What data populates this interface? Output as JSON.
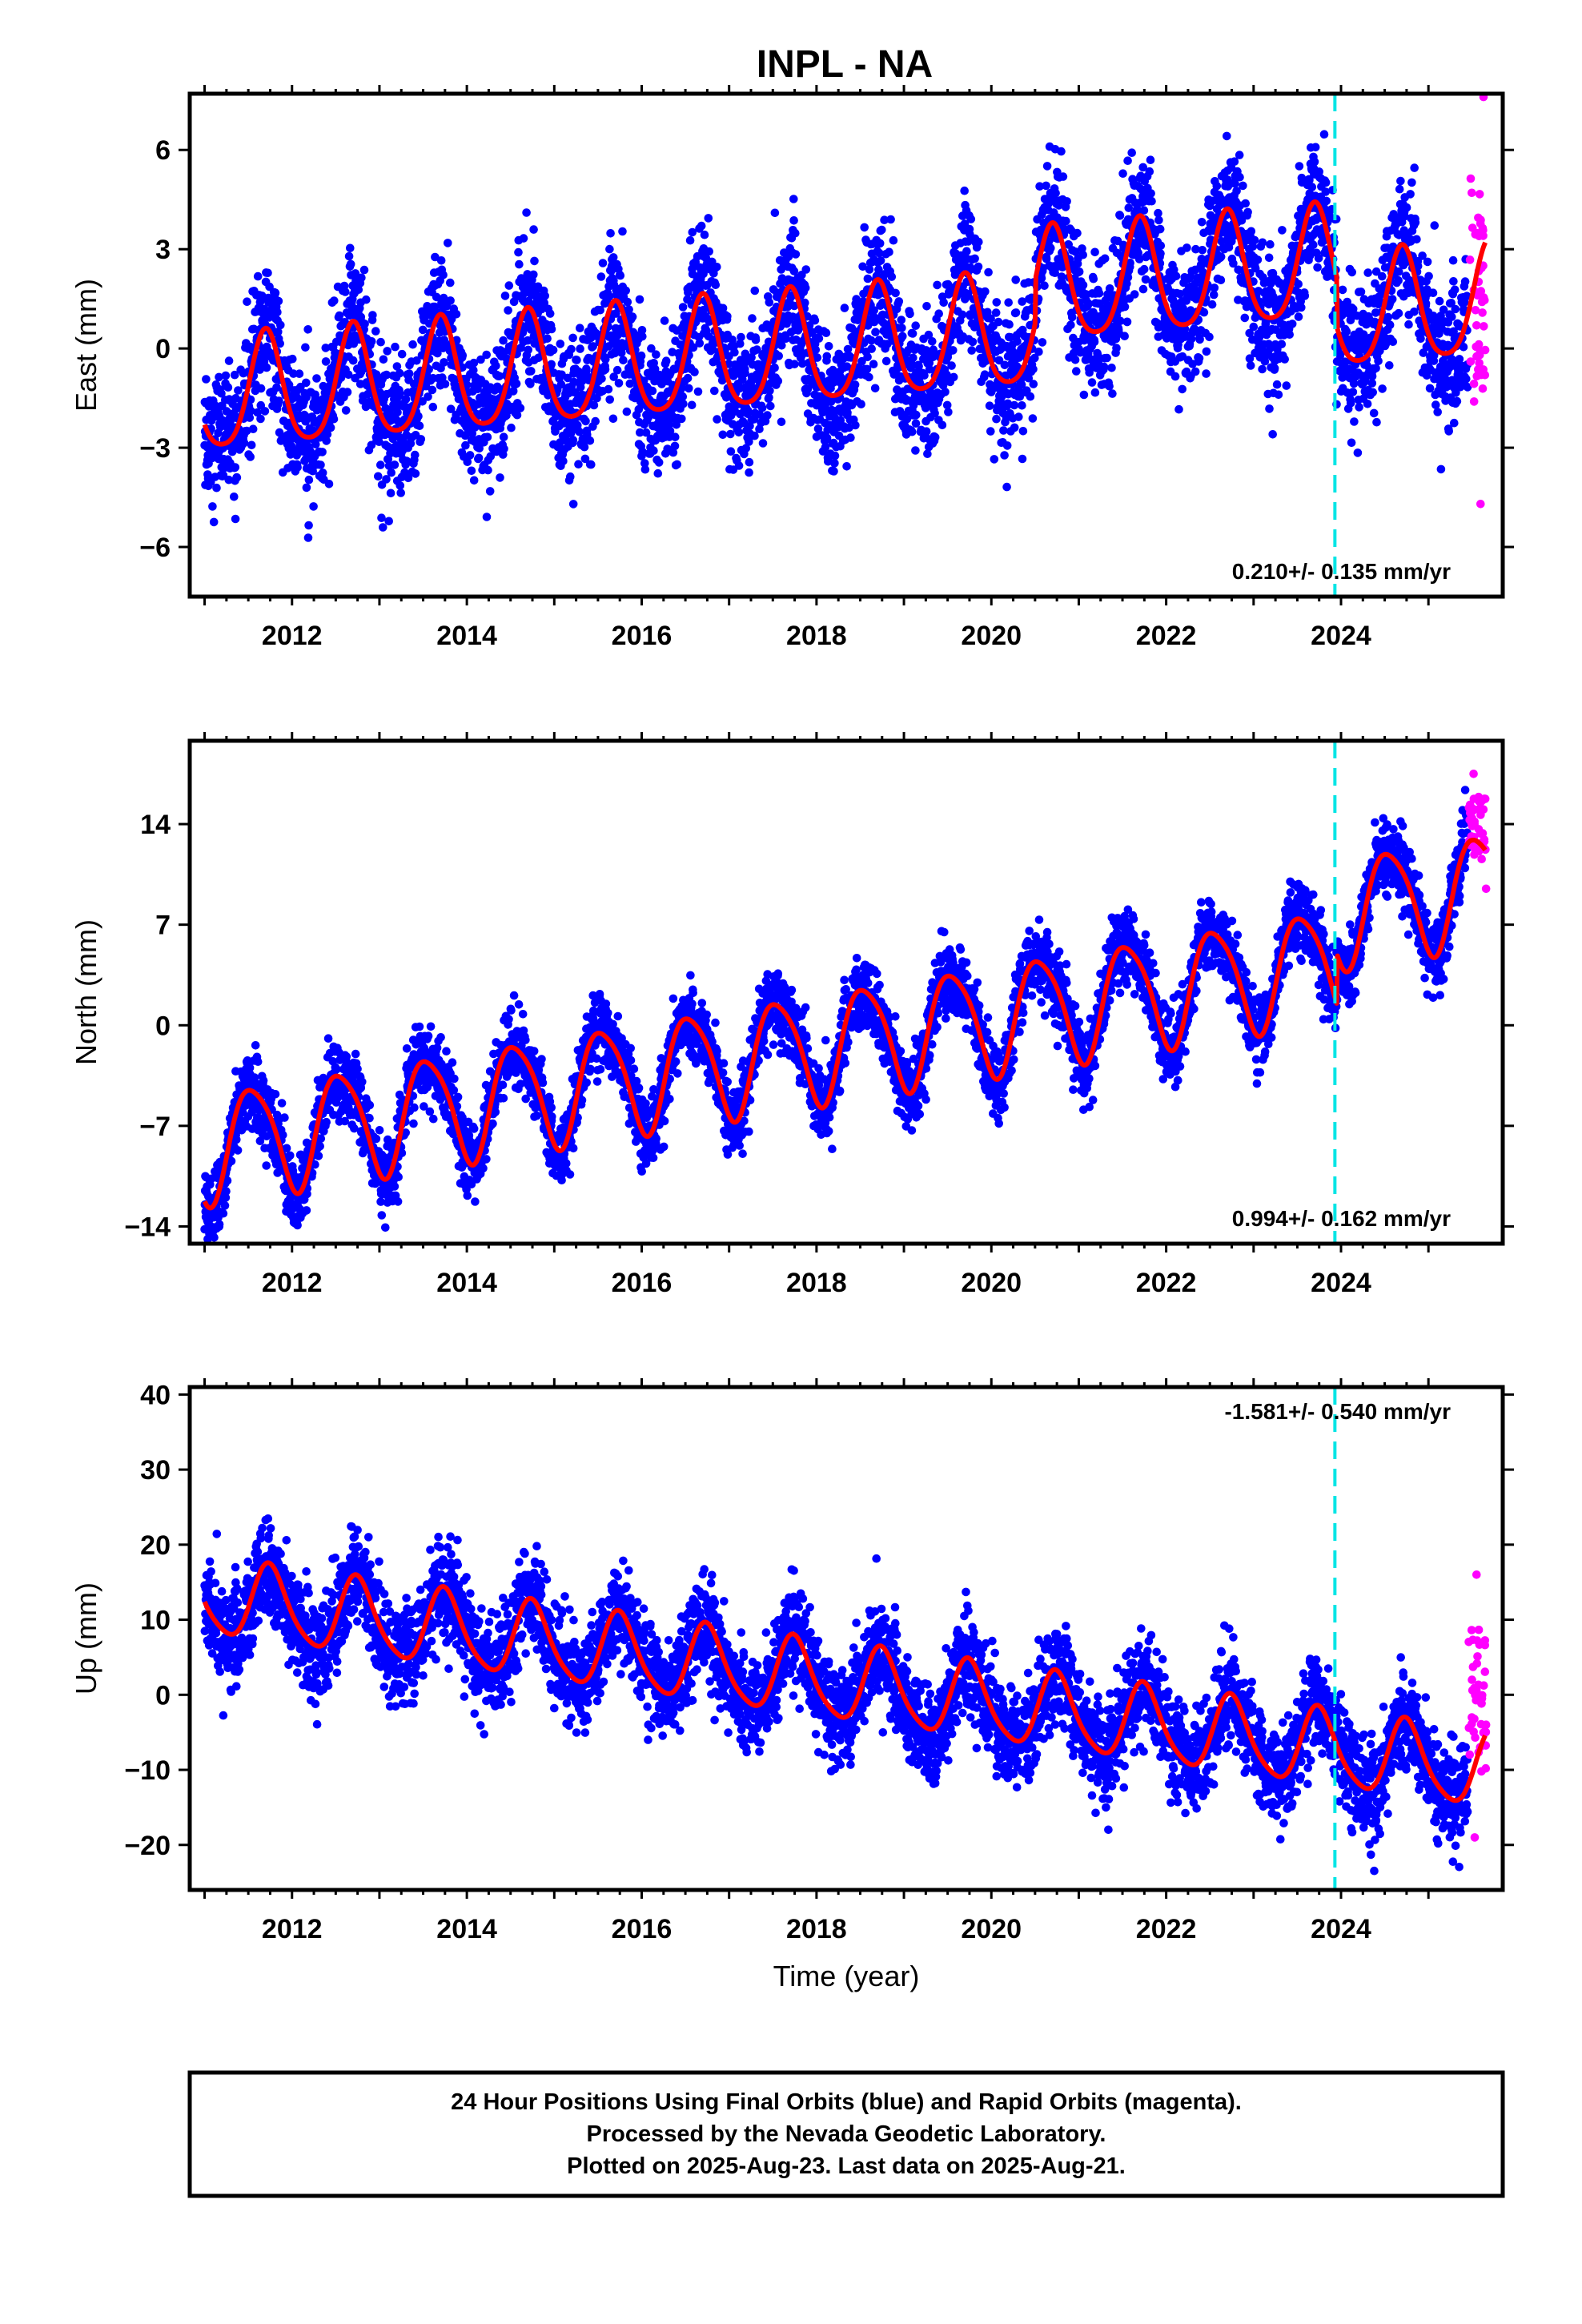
{
  "title": "INPL - NA",
  "caption_lines": [
    "24 Hour Positions Using Final Orbits (blue) and Rapid Orbits (magenta).",
    "Processed by the Nevada Geodetic Laboratory.",
    "Plotted on 2025-Aug-23. Last data on 2025-Aug-21."
  ],
  "colors": {
    "final_orbits": "#0000ff",
    "rapid_orbits": "#ff00ff",
    "model_fit": "#ff0000",
    "marker_line": "#00e5e5",
    "frame": "#000000"
  },
  "chart_data": [
    {
      "type": "scatter",
      "ylabel": "East (mm)",
      "xlabel": "",
      "xlim": [
        2010.83,
        2025.85
      ],
      "ylim": [
        -7.5,
        7.7
      ],
      "x_ticks": [
        "2012",
        "2014",
        "2016",
        "2018",
        "2020",
        "2022",
        "2024"
      ],
      "y_ticks": [
        "6",
        "3",
        "0",
        "−3",
        "−6"
      ],
      "rate_label": "0.210+/- 0.135 mm/yr",
      "rate_label_position": "bottom-right",
      "marker_line_x": 2023.93,
      "fit": {
        "x0": 2018.3,
        "intercept": 0.0,
        "slope": 0.21,
        "annual_amp": 1.7,
        "annual_peak": 0.7,
        "semiannual_amp": 0.3,
        "semiannual_peak": 0.2,
        "scatter": 1.3
      },
      "offsets": [
        {
          "x": 2020.5,
          "dy": 1.3
        },
        {
          "x": 2023.95,
          "dy": -1.5
        }
      ],
      "rapid_y_range": [
        -4.7,
        7.6
      ]
    },
    {
      "type": "scatter",
      "ylabel": "North (mm)",
      "xlabel": "",
      "xlim": [
        2010.83,
        2025.85
      ],
      "ylim": [
        -15.2,
        19.8
      ],
      "x_ticks": [
        "2012",
        "2014",
        "2016",
        "2018",
        "2020",
        "2022",
        "2024"
      ],
      "y_ticks": [
        "14",
        "7",
        "0",
        "−7",
        "−14"
      ],
      "rate_label": "0.994+/- 0.162 mm/yr",
      "rate_label_position": "bottom-right",
      "marker_line_x": 2023.93,
      "fit": {
        "x0": 2018.3,
        "intercept": -1.2,
        "slope": 0.994,
        "annual_amp": 3.8,
        "annual_peak": 0.55,
        "semiannual_amp": 0.6,
        "semiannual_peak": 0.35,
        "scatter": 1.6
      },
      "offsets": [
        {
          "x": 2023.95,
          "dy": 3.5
        }
      ],
      "rapid_y_range": [
        9.5,
        17.5
      ]
    },
    {
      "type": "scatter",
      "ylabel": "Up (mm)",
      "xlabel": "Time (year)",
      "xlim": [
        2010.83,
        2025.85
      ],
      "ylim": [
        -26,
        41
      ],
      "x_ticks": [
        "2012",
        "2014",
        "2016",
        "2018",
        "2020",
        "2022",
        "2024"
      ],
      "y_ticks": [
        "40",
        "30",
        "20",
        "10",
        "0",
        "−10",
        "−20"
      ],
      "rate_label": "-1.581+/- 0.540 mm/yr",
      "rate_label_position": "top-right",
      "marker_line_x": 2023.93,
      "fit": {
        "x0": 2018.3,
        "intercept": 1.5,
        "slope": -1.581,
        "annual_amp": 5.0,
        "annual_peak": 0.75,
        "semiannual_amp": 0.8,
        "semiannual_peak": 0.2,
        "scatter": 4.2
      },
      "offsets": [],
      "rapid_y_range": [
        -19,
        16
      ]
    }
  ]
}
